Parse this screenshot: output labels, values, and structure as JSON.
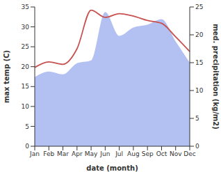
{
  "chart_data": {
    "type": "line",
    "x_label": "date (month)",
    "y_label": "max temp (C)",
    "y2_label": "med. precipitation (kg/m2)",
    "categories": [
      "Jan",
      "Feb",
      "Mar",
      "Apr",
      "May",
      "Jun",
      "Jul",
      "Aug",
      "Sep",
      "Oct",
      "Nov",
      "Dec"
    ],
    "series": [
      {
        "name": "med. precipitation (kg/m2)",
        "type": "area",
        "axis": "y2",
        "color": "#b3c0f2",
        "values": [
          12.4,
          13.4,
          12.9,
          14.9,
          15.4,
          24.1,
          19.8,
          21.3,
          21.8,
          22.8,
          18.8,
          15.0
        ]
      },
      {
        "name": "max temp (C)",
        "type": "line",
        "color": "#c8504f",
        "values": [
          19.8,
          21.2,
          20.6,
          24.5,
          34.2,
          32.4,
          33.3,
          32.7,
          31.6,
          30.9,
          27.5,
          23.8
        ]
      }
    ],
    "ylim": [
      0,
      35
    ],
    "yticks": [
      0,
      5,
      10,
      15,
      20,
      25,
      30,
      35
    ],
    "y2lim": [
      0,
      25
    ],
    "y2ticks": [
      0,
      5,
      10,
      15,
      20,
      25
    ],
    "grid": false
  }
}
